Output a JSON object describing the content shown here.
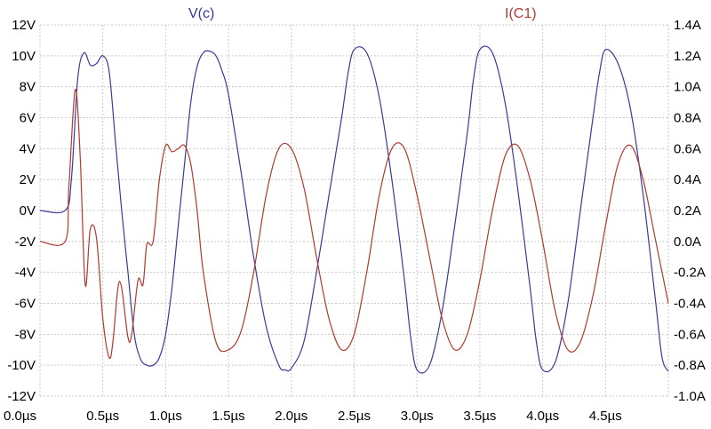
{
  "chart_data": {
    "type": "line",
    "xlim": [
      0,
      5.0
    ],
    "ylim_left": [
      -12,
      12
    ],
    "ylim_right": [
      -1.0,
      1.4
    ],
    "x_ticks": [
      0,
      0.5,
      1.0,
      1.5,
      2.0,
      2.5,
      3.0,
      3.5,
      4.0,
      4.5
    ],
    "x_tick_labels": [
      "0.0µs",
      "0.5µs",
      "1.0µs",
      "1.5µs",
      "2.0µs",
      "2.5µs",
      "3.0µs",
      "3.5µs",
      "4.0µs",
      "4.5µs"
    ],
    "y_left_ticks": [
      12,
      10,
      8,
      6,
      4,
      2,
      0,
      -2,
      -4,
      -6,
      -8,
      -10,
      -12
    ],
    "y_left_tick_labels": [
      "12V",
      "10V",
      "8V",
      "6V",
      "4V",
      "2V",
      "0V",
      "-2V",
      "-4V",
      "-6V",
      "-8V",
      "-10V",
      "-12V"
    ],
    "y_right_ticks": [
      1.4,
      1.2,
      1.0,
      0.8,
      0.6,
      0.4,
      0.2,
      0.0,
      -0.2,
      -0.4,
      -0.6,
      -0.8,
      -1.0
    ],
    "y_right_tick_labels": [
      "1.4A",
      "1.2A",
      "1.0A",
      "0.8A",
      "0.6A",
      "0.4A",
      "0.2A",
      "0.0A",
      "-0.2A",
      "-0.4A",
      "-0.6A",
      "-0.8A",
      "-1.0A"
    ],
    "grid": true,
    "legend": [
      "V(c)",
      "I(C1)"
    ],
    "colors": {
      "v": "#3a3a9c",
      "i": "#b03a30",
      "grid": "#c8c8c8"
    },
    "series": [
      {
        "name": "V(c)",
        "axis": "left",
        "x": [
          0,
          0.2,
          0.25,
          0.3,
          0.35,
          0.4,
          0.45,
          0.5,
          0.55,
          0.6,
          0.65,
          0.7,
          0.75,
          0.8,
          0.85,
          0.9,
          0.95,
          1.0,
          1.05,
          1.1,
          1.15,
          1.2,
          1.25,
          1.3,
          1.35,
          1.4,
          1.45,
          1.5,
          1.6,
          1.7,
          1.8,
          1.9,
          1.95,
          2.0,
          2.1,
          2.2,
          2.3,
          2.4,
          2.45,
          2.5,
          2.6,
          2.7,
          2.8,
          2.9,
          2.95,
          3.0,
          3.1,
          3.2,
          3.3,
          3.4,
          3.45,
          3.5,
          3.6,
          3.7,
          3.8,
          3.9,
          3.95,
          4.0,
          4.1,
          4.2,
          4.3,
          4.4,
          4.45,
          4.5,
          4.6,
          4.7,
          4.8,
          4.9,
          4.95,
          5.0
        ],
        "y": [
          0,
          0,
          2,
          8.5,
          10.2,
          9.4,
          9.5,
          10.0,
          9.0,
          4.5,
          0,
          -4,
          -8,
          -9.6,
          -10,
          -10,
          -9.5,
          -8,
          -5,
          -1,
          3,
          7,
          9.3,
          10.2,
          10.3,
          10.0,
          9.0,
          7.5,
          2.5,
          -3,
          -7.5,
          -10,
          -10.3,
          -10.2,
          -8.5,
          -4,
          1,
          6,
          8.8,
          10.4,
          10.2,
          7.3,
          2,
          -4.5,
          -8.2,
          -10.3,
          -10.0,
          -6.5,
          -1,
          5,
          8.5,
          10.4,
          10.2,
          7.0,
          1.5,
          -5,
          -8.5,
          -10.3,
          -9.8,
          -6,
          0,
          6,
          8.8,
          10.4,
          9.5,
          6.5,
          1,
          -6,
          -9.5,
          -10.4
        ]
      },
      {
        "name": "I(C1)",
        "axis": "right",
        "x": [
          0,
          0.2,
          0.23,
          0.28,
          0.32,
          0.36,
          0.4,
          0.45,
          0.5,
          0.55,
          0.58,
          0.62,
          0.65,
          0.7,
          0.73,
          0.78,
          0.82,
          0.85,
          0.9,
          0.95,
          1.0,
          1.05,
          1.1,
          1.15,
          1.2,
          1.25,
          1.3,
          1.4,
          1.5,
          1.6,
          1.7,
          1.8,
          1.9,
          2.0,
          2.1,
          2.2,
          2.3,
          2.4,
          2.5,
          2.6,
          2.7,
          2.8,
          2.9,
          3.0,
          3.1,
          3.2,
          3.3,
          3.4,
          3.5,
          3.6,
          3.7,
          3.8,
          3.9,
          4.0,
          4.1,
          4.2,
          4.3,
          4.4,
          4.5,
          4.6,
          4.7,
          4.8,
          4.9,
          5.0
        ],
        "y": [
          0,
          0,
          0.35,
          0.98,
          0.55,
          -0.28,
          0.08,
          0.02,
          -0.5,
          -0.75,
          -0.65,
          -0.3,
          -0.3,
          -0.62,
          -0.6,
          -0.25,
          -0.28,
          -0.02,
          0,
          0.4,
          0.62,
          0.58,
          0.6,
          0.62,
          0.5,
          0.2,
          -0.2,
          -0.65,
          -0.7,
          -0.58,
          -0.2,
          0.3,
          0.6,
          0.6,
          0.35,
          -0.1,
          -0.5,
          -0.7,
          -0.6,
          -0.2,
          0.3,
          0.6,
          0.6,
          0.3,
          -0.1,
          -0.5,
          -0.7,
          -0.6,
          -0.25,
          0.2,
          0.55,
          0.62,
          0.4,
          0,
          -0.45,
          -0.7,
          -0.65,
          -0.35,
          0.1,
          0.5,
          0.62,
          0.4,
          0,
          -0.4
        ]
      }
    ]
  }
}
